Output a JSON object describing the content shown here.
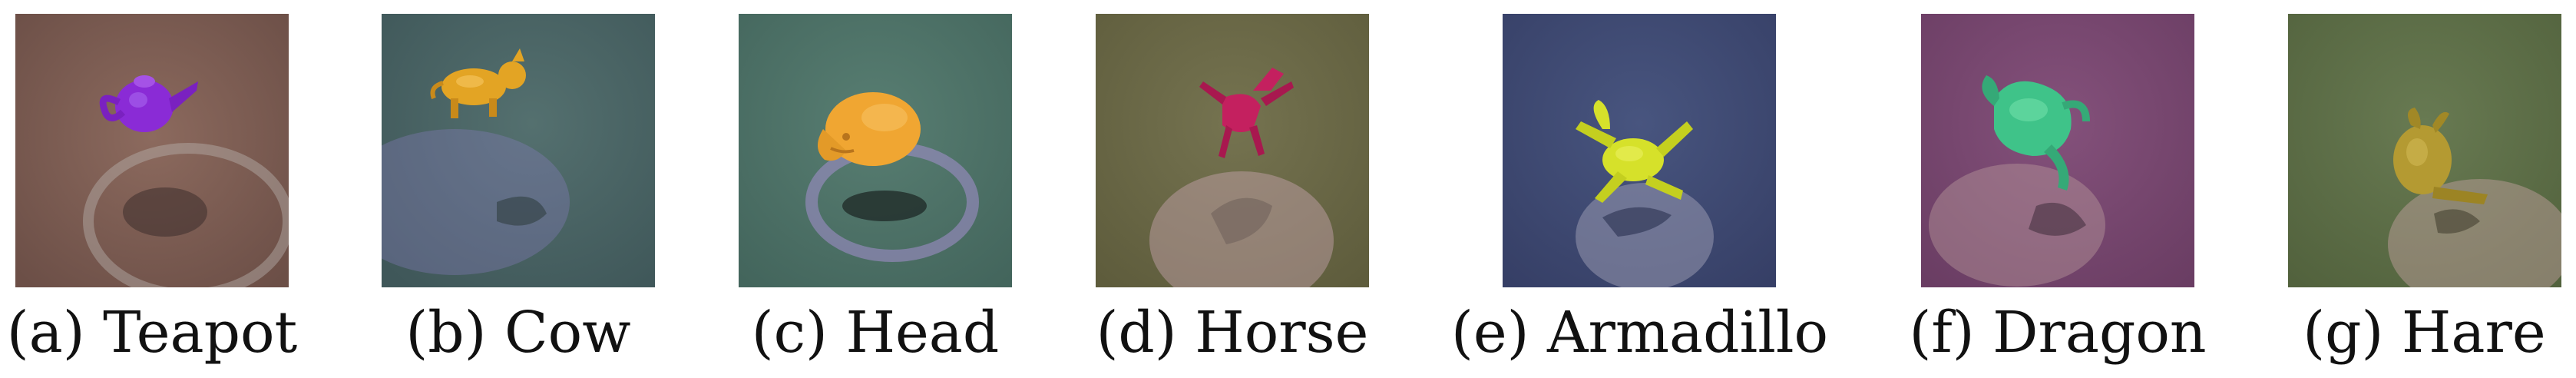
{
  "figure": {
    "panels": [
      {
        "caption": "(a) Teapot",
        "background": "#7e5d53",
        "object_color": "#8a2bd6",
        "object": "teapot"
      },
      {
        "caption": "(b) Cow",
        "background": "#4a6466",
        "object_color": "#e3a424",
        "object": "cow"
      },
      {
        "caption": "(c) Head",
        "background": "#4d7167",
        "object_color": "#f0a632",
        "object": "head"
      },
      {
        "caption": "(d) Horse",
        "background": "#6b6a45",
        "object_color": "#c4205f",
        "object": "horse"
      },
      {
        "caption": "(e) Armadillo",
        "background": "#3e4a73",
        "object_color": "#d6e12a",
        "object": "armadillo"
      },
      {
        "caption": "(f) Dragon",
        "background": "#7a4872",
        "object_color": "#3fc389",
        "object": "dragon"
      },
      {
        "caption": "(g) Hare",
        "background": "#5e7048",
        "object_color": "#b49a32",
        "object": "hare"
      }
    ]
  }
}
